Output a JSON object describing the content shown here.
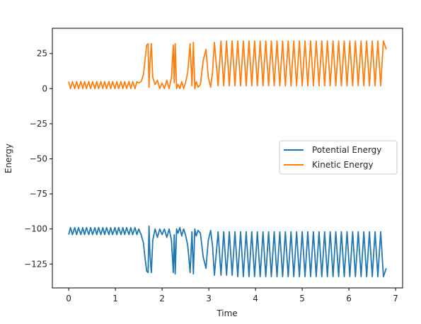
{
  "chart_data": {
    "type": "line",
    "title": "",
    "xlabel": "Time",
    "ylabel": "Energy",
    "xlim": [
      -0.35,
      7.15
    ],
    "ylim": [
      -142,
      43
    ],
    "xticks": [
      0,
      1,
      2,
      3,
      4,
      5,
      6,
      7
    ],
    "xtick_labels": [
      "0",
      "1",
      "2",
      "3",
      "4",
      "5",
      "6",
      "7"
    ],
    "yticks": [
      25,
      0,
      -25,
      -50,
      -75,
      -100,
      -125
    ],
    "ytick_labels": [
      "25",
      "0",
      "−25",
      "−50",
      "−75",
      "−100",
      "−125"
    ],
    "grid": false,
    "legend_position": "center-right",
    "series": [
      {
        "name": "Potential Energy",
        "color": "#1f77b4",
        "x": [
          0.0,
          0.04,
          0.08,
          0.13,
          0.17,
          0.21,
          0.26,
          0.3,
          0.34,
          0.38,
          0.43,
          0.47,
          0.51,
          0.56,
          0.6,
          0.64,
          0.69,
          0.73,
          0.77,
          0.81,
          0.86,
          0.9,
          0.94,
          0.99,
          1.03,
          1.07,
          1.12,
          1.16,
          1.2,
          1.24,
          1.29,
          1.33,
          1.37,
          1.42,
          1.46,
          1.5,
          1.55,
          1.6,
          1.64,
          1.67,
          1.7,
          1.72,
          1.74,
          1.77,
          1.8,
          1.85,
          1.9,
          1.95,
          2.0,
          2.05,
          2.1,
          2.15,
          2.2,
          2.24,
          2.26,
          2.28,
          2.31,
          2.34,
          2.38,
          2.42,
          2.46,
          2.5,
          2.55,
          2.6,
          2.64,
          2.67,
          2.7,
          2.73,
          2.77,
          2.82,
          2.88,
          2.94,
          2.99,
          3.04,
          3.08,
          3.12,
          3.2,
          3.26,
          3.32,
          3.38,
          3.44,
          3.5,
          3.56,
          3.62,
          3.68,
          3.74,
          3.8,
          3.86,
          3.92,
          3.98,
          4.04,
          4.1,
          4.16,
          4.22,
          4.28,
          4.34,
          4.4,
          4.46,
          4.52,
          4.58,
          4.64,
          4.7,
          4.76,
          4.82,
          4.88,
          4.94,
          5.0,
          5.06,
          5.12,
          5.18,
          5.24,
          5.3,
          5.36,
          5.42,
          5.48,
          5.54,
          5.6,
          5.66,
          5.72,
          5.78,
          5.84,
          5.9,
          5.96,
          6.02,
          6.08,
          6.14,
          6.2,
          6.26,
          6.32,
          6.38,
          6.44,
          6.5,
          6.56,
          6.62,
          6.68,
          6.74,
          6.8
        ],
        "values": [
          -104,
          -99,
          -104,
          -99,
          -104,
          -99,
          -104,
          -99,
          -104,
          -99,
          -104,
          -99,
          -104,
          -99,
          -104,
          -99,
          -104,
          -99,
          -104,
          -99,
          -104,
          -99,
          -104,
          -99,
          -104,
          -99,
          -104,
          -99,
          -104,
          -99,
          -104,
          -99,
          -104,
          -99,
          -104,
          -100,
          -104,
          -110,
          -122,
          -130,
          -131,
          -98,
          -118,
          -131,
          -108,
          -100,
          -106,
          -100,
          -104,
          -100,
          -106,
          -100,
          -108,
          -131,
          -104,
          -132,
          -100,
          -103,
          -99,
          -105,
          -100,
          -104,
          -112,
          -131,
          -102,
          -132,
          -100,
          -105,
          -101,
          -103,
          -120,
          -128,
          -108,
          -101,
          -112,
          -133,
          -102,
          -133,
          -102,
          -133,
          -102,
          -133,
          -102,
          -134,
          -102,
          -134,
          -102,
          -134,
          -102,
          -134,
          -102,
          -134,
          -102,
          -134,
          -102,
          -134,
          -102,
          -134,
          -102,
          -134,
          -102,
          -134,
          -102,
          -134,
          -102,
          -134,
          -102,
          -134,
          -102,
          -134,
          -102,
          -134,
          -102,
          -134,
          -102,
          -134,
          -102,
          -134,
          -102,
          -134,
          -102,
          -134,
          -102,
          -134,
          -102,
          -134,
          -102,
          -134,
          -102,
          -134,
          -102,
          -134,
          -102,
          -134,
          -102,
          -134,
          -128
        ]
      },
      {
        "name": "Kinetic Energy",
        "color": "#ff7f0e",
        "x": [
          0.0,
          0.04,
          0.08,
          0.13,
          0.17,
          0.21,
          0.26,
          0.3,
          0.34,
          0.38,
          0.43,
          0.47,
          0.51,
          0.56,
          0.6,
          0.64,
          0.69,
          0.73,
          0.77,
          0.81,
          0.86,
          0.9,
          0.94,
          0.99,
          1.03,
          1.07,
          1.12,
          1.16,
          1.2,
          1.24,
          1.29,
          1.33,
          1.37,
          1.42,
          1.46,
          1.5,
          1.55,
          1.6,
          1.64,
          1.67,
          1.7,
          1.72,
          1.74,
          1.77,
          1.8,
          1.85,
          1.9,
          1.95,
          2.0,
          2.05,
          2.1,
          2.15,
          2.2,
          2.24,
          2.26,
          2.28,
          2.31,
          2.34,
          2.38,
          2.42,
          2.46,
          2.5,
          2.55,
          2.6,
          2.64,
          2.67,
          2.7,
          2.73,
          2.77,
          2.82,
          2.88,
          2.94,
          2.99,
          3.04,
          3.08,
          3.12,
          3.2,
          3.26,
          3.32,
          3.38,
          3.44,
          3.5,
          3.56,
          3.62,
          3.68,
          3.74,
          3.8,
          3.86,
          3.92,
          3.98,
          4.04,
          4.1,
          4.16,
          4.22,
          4.28,
          4.34,
          4.4,
          4.46,
          4.52,
          4.58,
          4.64,
          4.7,
          4.76,
          4.82,
          4.88,
          4.94,
          5.0,
          5.06,
          5.12,
          5.18,
          5.24,
          5.3,
          5.36,
          5.42,
          5.48,
          5.54,
          5.6,
          5.66,
          5.72,
          5.78,
          5.84,
          5.9,
          5.96,
          6.02,
          6.08,
          6.14,
          6.2,
          6.26,
          6.32,
          6.38,
          6.44,
          6.5,
          6.56,
          6.62,
          6.68,
          6.74,
          6.8
        ],
        "values": [
          5,
          0,
          5,
          0,
          5,
          0,
          5,
          0,
          5,
          0,
          5,
          0,
          5,
          0,
          5,
          0,
          5,
          0,
          5,
          0,
          5,
          0,
          5,
          0,
          5,
          0,
          5,
          0,
          5,
          0,
          5,
          0,
          5,
          0,
          5,
          4,
          5,
          10,
          22,
          31,
          32,
          1,
          18,
          32,
          8,
          3,
          6,
          0,
          4,
          0,
          6,
          0,
          8,
          31,
          4,
          32,
          0,
          3,
          0,
          5,
          0,
          4,
          12,
          32,
          2,
          33,
          0,
          5,
          1,
          3,
          20,
          28,
          8,
          1,
          12,
          33,
          2,
          34,
          2,
          34,
          2,
          34,
          2,
          34,
          2,
          34,
          2,
          34,
          2,
          34,
          2,
          34,
          2,
          34,
          2,
          34,
          2,
          34,
          2,
          34,
          2,
          34,
          2,
          34,
          2,
          34,
          2,
          34,
          2,
          34,
          2,
          34,
          2,
          34,
          2,
          34,
          2,
          34,
          2,
          34,
          2,
          34,
          2,
          34,
          2,
          34,
          2,
          34,
          2,
          34,
          2,
          34,
          2,
          34,
          2,
          34,
          28
        ]
      }
    ]
  }
}
